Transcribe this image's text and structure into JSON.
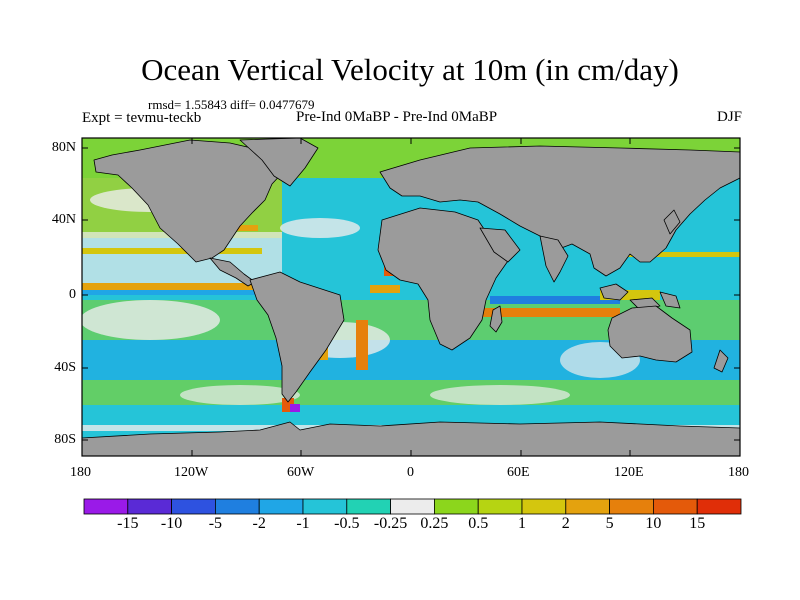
{
  "title": "Ocean Vertical Velocity at 10m (in cm/day)",
  "stats": "rmsd= 1.55843 diff= 0.0477679",
  "experiment": "Expt = tevmu-teckb",
  "comparison": "Pre-Ind 0MaBP - Pre-Ind 0MaBP",
  "season": "DJF",
  "lat_labels": [
    "80N",
    "40N",
    "0",
    "40S",
    "80S"
  ],
  "lon_labels": [
    "180",
    "120W",
    "60W",
    "0",
    "60E",
    "120E",
    "180"
  ],
  "colorbar": {
    "colors": [
      "#9a1ae8",
      "#5a2ad6",
      "#2e52e0",
      "#1f7fe0",
      "#20a6e6",
      "#25c4d8",
      "#22d2b4",
      "#ececec",
      "#8cd61c",
      "#b6d412",
      "#d4c60e",
      "#e4a20e",
      "#e6800c",
      "#e45a0a",
      "#e02e08"
    ],
    "labels": [
      "-15",
      "-10",
      "-5",
      "-2",
      "-1",
      "-0.5",
      "-0.25",
      "0.25",
      "0.5",
      "1",
      "2",
      "5",
      "10",
      "15"
    ]
  }
}
